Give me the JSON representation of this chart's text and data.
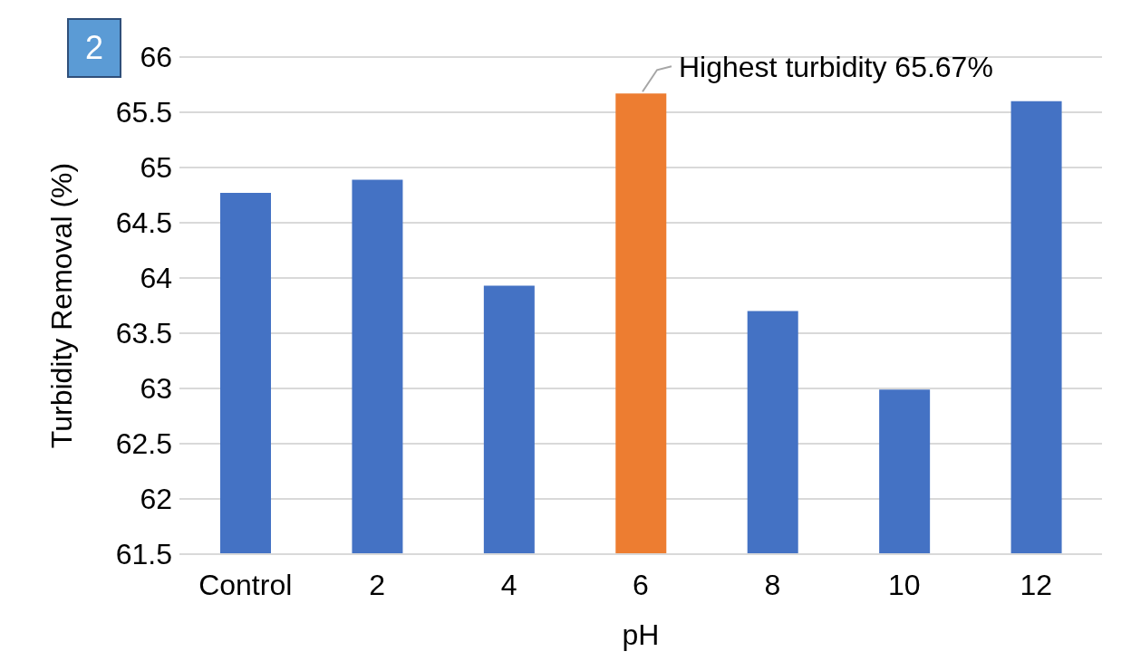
{
  "chart_data": {
    "type": "bar",
    "xlabel": "pH",
    "ylabel": "Turbidity Removal (%)",
    "categories": [
      "Control",
      "2",
      "4",
      "6",
      "8",
      "10",
      "12"
    ],
    "values": [
      64.77,
      64.89,
      63.93,
      65.67,
      63.7,
      62.99,
      65.6
    ],
    "colors": [
      "#4472c4",
      "#4472c4",
      "#4472c4",
      "#ed7d31",
      "#4472c4",
      "#4472c4",
      "#4472c4"
    ],
    "ylim": [
      61.5,
      66
    ],
    "yticks": [
      61.5,
      62,
      62.5,
      63,
      63.5,
      64,
      64.5,
      65,
      65.5,
      66
    ],
    "grid": "y",
    "annotations": [
      "2",
      {
        "text": "Highest turbidity 65.67%",
        "x": "6",
        "y": 65.67
      }
    ]
  }
}
